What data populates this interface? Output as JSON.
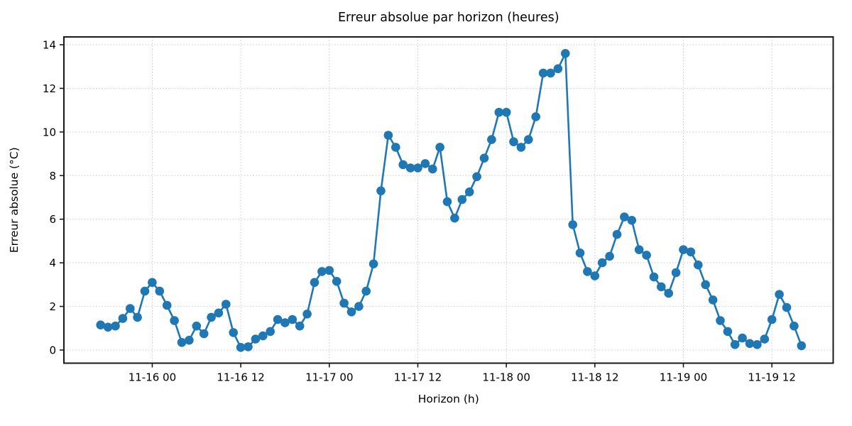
{
  "chart_data": {
    "type": "line",
    "title": "Erreur absolue par horizon (heures)",
    "xlabel": "Horizon (h)",
    "ylabel": "Erreur absolue (°C)",
    "series_color": "#1f77b4",
    "marker": "circle",
    "grid": true,
    "grid_style": "dotted",
    "n_points": 96,
    "x_spacing_hours": 1,
    "x_tick_labels": [
      "11-16 00",
      "11-16 12",
      "11-17 00",
      "11-17 12",
      "11-18 00",
      "11-18 12",
      "11-19 00",
      "11-19 12"
    ],
    "x_tick_point_indices": [
      7,
      19,
      31,
      43,
      55,
      67,
      79,
      91
    ],
    "y_ticks": [
      0,
      2,
      4,
      6,
      8,
      10,
      12,
      14
    ],
    "ylim": [
      -0.6,
      14.35
    ],
    "values": [
      1.15,
      1.05,
      1.1,
      1.45,
      1.9,
      1.5,
      2.7,
      3.1,
      2.7,
      2.05,
      1.35,
      0.35,
      0.45,
      1.1,
      0.75,
      1.5,
      1.7,
      2.1,
      0.8,
      0.12,
      0.15,
      0.5,
      0.65,
      0.85,
      1.4,
      1.25,
      1.4,
      1.1,
      1.65,
      3.1,
      3.6,
      3.65,
      3.15,
      2.15,
      1.75,
      2.0,
      2.7,
      3.95,
      7.3,
      9.85,
      9.3,
      8.5,
      8.35,
      8.35,
      8.55,
      8.3,
      9.3,
      6.8,
      6.05,
      6.9,
      7.25,
      7.95,
      8.8,
      9.65,
      10.9,
      10.9,
      9.55,
      9.3,
      9.65,
      10.7,
      12.7,
      12.7,
      12.9,
      13.6,
      5.75,
      4.45,
      3.6,
      3.4,
      4.0,
      4.3,
      5.3,
      6.1,
      5.95,
      4.6,
      4.35,
      3.35,
      2.9,
      2.6,
      3.55,
      4.6,
      4.5,
      3.9,
      3.0,
      2.3,
      1.35,
      0.85,
      0.25,
      0.55,
      0.3,
      0.25,
      0.5,
      1.4,
      2.55,
      1.95,
      1.1,
      0.2
    ]
  }
}
